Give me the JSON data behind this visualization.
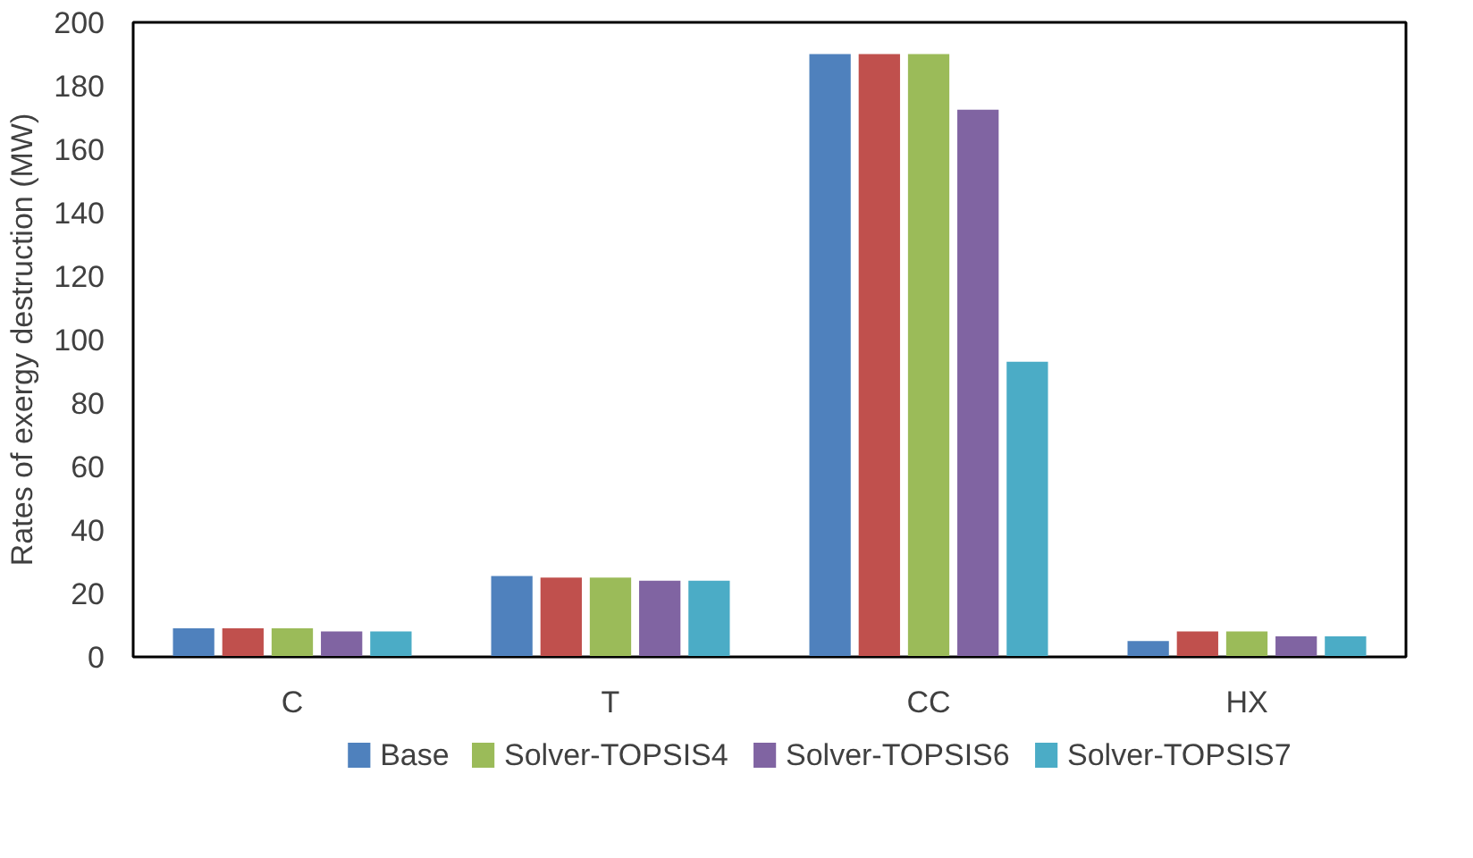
{
  "chart_data": {
    "type": "bar",
    "ylabel": "Rates of exergy destruction (MW)",
    "categories": [
      "C",
      "T",
      "CC",
      "HX"
    ],
    "series": [
      {
        "name": "Base",
        "color": "#4f81bd",
        "values": [
          9,
          25.5,
          190,
          5
        ]
      },
      {
        "color": "#c0504d",
        "values": [
          9,
          25,
          190,
          8
        ]
      },
      {
        "name": "Solver-TOPSIS4",
        "color": "#9bbb59",
        "values": [
          9,
          25,
          190,
          8
        ]
      },
      {
        "name": "Solver-TOPSIS6",
        "color": "#8064a2",
        "values": [
          8,
          24,
          172.5,
          6.5
        ]
      },
      {
        "name": "Solver-TOPSIS7",
        "color": "#4bacc6",
        "values": [
          8,
          24,
          93,
          6.5
        ]
      }
    ],
    "ylim": [
      0,
      200
    ],
    "yticks": [
      0,
      20,
      40,
      60,
      80,
      100,
      120,
      140,
      160,
      180,
      200
    ],
    "grid": false,
    "legend": "bottom"
  }
}
